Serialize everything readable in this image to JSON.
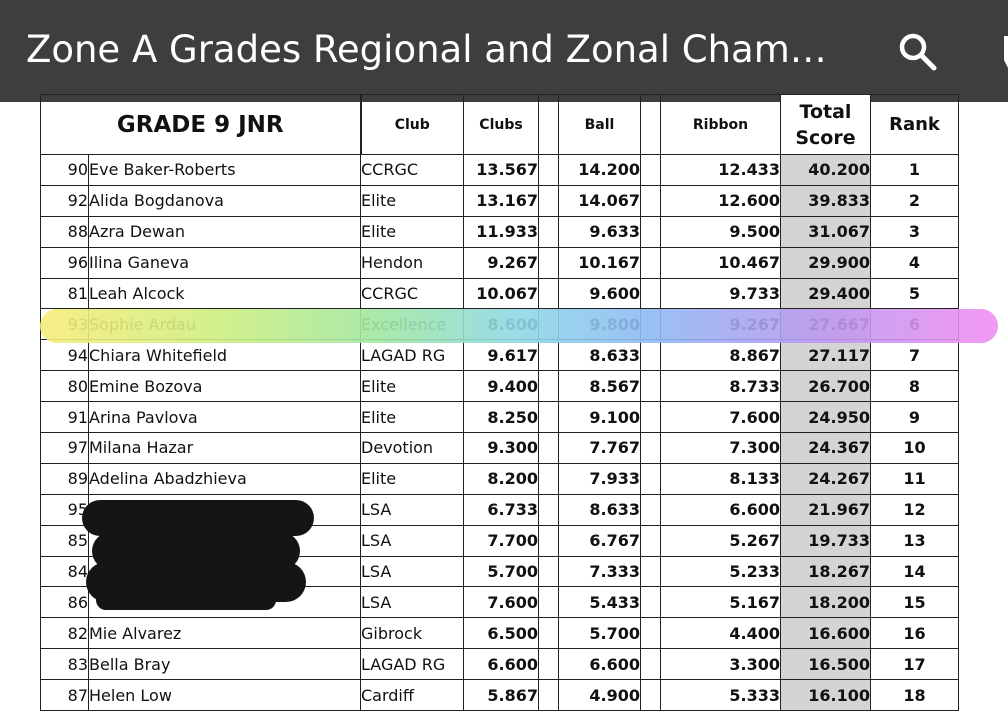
{
  "app": {
    "title": "Zone A Grades Regional and Zonal Cham…"
  },
  "toolbar": {
    "search_icon": "search-icon",
    "edit_icon": "pen-icon"
  },
  "table": {
    "grade_title": "GRADE 9 JNR",
    "columns": {
      "club": "Club",
      "clubs": "Clubs",
      "ball": "Ball",
      "ribbon": "Ribbon",
      "total_line1": "Total",
      "total_line2": "Score",
      "rank": "Rank"
    },
    "highlight_colors": [
      "#f6ec7a",
      "#9fe6a4",
      "#8fd8e6",
      "#8fb8f4",
      "#b79af0",
      "#f08ef0"
    ],
    "rows": [
      {
        "num": "90",
        "name": "Eve Baker-Roberts",
        "club": "CCRGC",
        "clubs": "13.567",
        "ball": "14.200",
        "ribbon": "12.433",
        "total": "40.200",
        "rank": "1"
      },
      {
        "num": "92",
        "name": "Alida Bogdanova",
        "club": "Elite",
        "clubs": "13.167",
        "ball": "14.067",
        "ribbon": "12.600",
        "total": "39.833",
        "rank": "2"
      },
      {
        "num": "88",
        "name": "Azra Dewan",
        "club": "Elite",
        "clubs": "11.933",
        "ball": "9.633",
        "ribbon": "9.500",
        "total": "31.067",
        "rank": "3"
      },
      {
        "num": "96",
        "name": "Ilina Ganeva",
        "club": "Hendon",
        "clubs": "9.267",
        "ball": "10.167",
        "ribbon": "10.467",
        "total": "29.900",
        "rank": "4"
      },
      {
        "num": "81",
        "name": "Leah Alcock",
        "club": "CCRGC",
        "clubs": "10.067",
        "ball": "9.600",
        "ribbon": "9.733",
        "total": "29.400",
        "rank": "5"
      },
      {
        "num": "93",
        "name": "Sophie Ardau",
        "club": "Excellence",
        "clubs": "8.600",
        "ball": "9.800",
        "ribbon": "9.267",
        "total": "27.667",
        "rank": "6"
      },
      {
        "num": "94",
        "name": "Chiara Whitefield",
        "club": "LAGAD RG",
        "clubs": "9.617",
        "ball": "8.633",
        "ribbon": "8.867",
        "total": "27.117",
        "rank": "7"
      },
      {
        "num": "80",
        "name": "Emine Bozova",
        "club": "Elite",
        "clubs": "9.400",
        "ball": "8.567",
        "ribbon": "8.733",
        "total": "26.700",
        "rank": "8"
      },
      {
        "num": "91",
        "name": "Arina Pavlova",
        "club": "Elite",
        "clubs": "8.250",
        "ball": "9.100",
        "ribbon": "7.600",
        "total": "24.950",
        "rank": "9"
      },
      {
        "num": "97",
        "name": "Milana Hazar",
        "club": "Devotion",
        "clubs": "9.300",
        "ball": "7.767",
        "ribbon": "7.300",
        "total": "24.367",
        "rank": "10"
      },
      {
        "num": "89",
        "name": "Adelina Abadzhieva",
        "club": "Elite",
        "clubs": "8.200",
        "ball": "7.933",
        "ribbon": "8.133",
        "total": "24.267",
        "rank": "11"
      },
      {
        "num": "95",
        "name": "",
        "club": "LSA",
        "clubs": "6.733",
        "ball": "8.633",
        "ribbon": "6.600",
        "total": "21.967",
        "rank": "12"
      },
      {
        "num": "85",
        "name": "",
        "club": "LSA",
        "clubs": "7.700",
        "ball": "6.767",
        "ribbon": "5.267",
        "total": "19.733",
        "rank": "13"
      },
      {
        "num": "84",
        "name": "",
        "club": "LSA",
        "clubs": "5.700",
        "ball": "7.333",
        "ribbon": "5.233",
        "total": "18.267",
        "rank": "14"
      },
      {
        "num": "86",
        "name": "",
        "club": "LSA",
        "clubs": "7.600",
        "ball": "5.433",
        "ribbon": "5.167",
        "total": "18.200",
        "rank": "15"
      },
      {
        "num": "82",
        "name": "Mie Alvarez",
        "club": "Gibrock",
        "clubs": "6.500",
        "ball": "5.700",
        "ribbon": "4.400",
        "total": "16.600",
        "rank": "16"
      },
      {
        "num": "83",
        "name": "Bella Bray",
        "club": "LAGAD RG",
        "clubs": "6.600",
        "ball": "6.600",
        "ribbon": "3.300",
        "total": "16.500",
        "rank": "17"
      },
      {
        "num": "87",
        "name": "Helen Low",
        "club": "Cardiff",
        "clubs": "5.867",
        "ball": "4.900",
        "ribbon": "5.333",
        "total": "16.100",
        "rank": "18"
      }
    ]
  }
}
